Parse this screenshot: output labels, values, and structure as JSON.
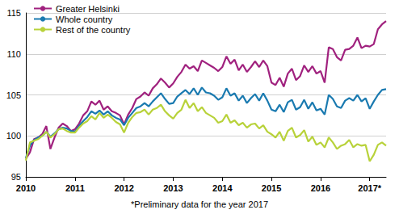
{
  "chart_data": {
    "type": "line",
    "annotations": [
      "*Preliminary data for the year 2017"
    ],
    "categories": [
      "2010",
      null,
      null,
      null,
      null,
      null,
      null,
      null,
      null,
      null,
      null,
      null,
      "2011",
      null,
      null,
      null,
      null,
      null,
      null,
      null,
      null,
      null,
      null,
      null,
      "2012",
      null,
      null,
      null,
      null,
      null,
      null,
      null,
      null,
      null,
      null,
      null,
      "2013",
      null,
      null,
      null,
      null,
      null,
      null,
      null,
      null,
      null,
      null,
      null,
      "2014",
      null,
      null,
      null,
      null,
      null,
      null,
      null,
      null,
      null,
      null,
      null,
      "2015",
      null,
      null,
      null,
      null,
      null,
      null,
      null,
      null,
      null,
      null,
      null,
      "2016",
      null,
      null,
      null,
      null,
      null,
      null,
      null,
      null,
      null,
      null,
      null,
      "2017*",
      null,
      null,
      null,
      null
    ],
    "series": [
      {
        "name": "Greater Helsinki",
        "color": "#a0217e",
        "values": [
          97.2,
          98.0,
          99.6,
          99.8,
          100.2,
          101.2,
          98.4,
          99.8,
          101.0,
          101.5,
          101.2,
          100.6,
          100.8,
          101.5,
          102.5,
          103.0,
          104.2,
          103.8,
          104.3,
          103.2,
          103.6,
          103.0,
          102.8,
          102.5,
          101.4,
          102.6,
          103.4,
          104.5,
          104.8,
          105.3,
          104.9,
          105.8,
          106.3,
          107.0,
          106.5,
          105.9,
          106.4,
          107.2,
          107.8,
          108.7,
          108.2,
          108.5,
          107.9,
          109.2,
          108.9,
          108.6,
          108.3,
          107.9,
          108.4,
          109.7,
          108.8,
          109.3,
          108.0,
          108.7,
          107.8,
          108.4,
          109.1,
          108.4,
          109.2,
          108.5,
          106.5,
          106.2,
          107.1,
          106.0,
          107.6,
          108.2,
          106.8,
          107.3,
          108.6,
          107.8,
          108.5,
          107.6,
          107.9,
          106.5,
          110.8,
          110.6,
          109.6,
          109.2,
          110.5,
          110.6,
          111.0,
          112.0,
          110.7,
          111.0,
          110.9,
          111.2,
          113.0,
          113.6,
          114.0
        ]
      },
      {
        "name": "Whole country",
        "color": "#1a7ab0",
        "values": [
          97.3,
          98.8,
          99.5,
          99.8,
          100.0,
          100.5,
          99.9,
          100.3,
          100.8,
          101.0,
          100.9,
          100.6,
          100.5,
          101.2,
          101.8,
          102.3,
          103.0,
          102.7,
          103.1,
          102.6,
          103.0,
          102.5,
          102.2,
          102.0,
          101.3,
          102.2,
          102.8,
          103.4,
          103.6,
          104.0,
          103.6,
          104.2,
          104.7,
          105.2,
          104.5,
          103.9,
          104.0,
          104.8,
          105.2,
          105.6,
          105.1,
          105.8,
          105.0,
          105.9,
          105.3,
          105.2,
          104.9,
          104.4,
          104.7,
          105.8,
          104.9,
          105.2,
          104.3,
          104.9,
          104.0,
          104.6,
          105.1,
          104.3,
          105.2,
          104.3,
          103.2,
          103.0,
          103.8,
          102.9,
          104.1,
          104.4,
          103.2,
          103.5,
          104.4,
          103.3,
          104.1,
          103.1,
          103.3,
          102.6,
          105.0,
          104.5,
          103.6,
          103.4,
          104.3,
          104.6,
          104.3,
          105.0,
          104.2,
          104.6,
          103.3,
          104.2,
          105.0,
          105.6,
          105.7
        ]
      },
      {
        "name": "Rest of the country",
        "color": "#b8d23a",
        "values": [
          97.0,
          99.2,
          99.4,
          99.6,
          100.0,
          100.5,
          99.8,
          100.2,
          100.8,
          100.9,
          100.6,
          100.4,
          100.4,
          101.0,
          101.5,
          101.8,
          102.4,
          102.0,
          102.8,
          102.2,
          102.6,
          102.2,
          101.7,
          101.4,
          100.4,
          101.6,
          102.3,
          102.8,
          102.9,
          103.2,
          102.6,
          103.2,
          103.4,
          103.8,
          103.0,
          102.5,
          102.1,
          102.8,
          103.2,
          104.4,
          103.4,
          104.0,
          103.0,
          103.5,
          102.8,
          102.5,
          102.2,
          101.6,
          101.8,
          102.6,
          101.6,
          101.9,
          101.3,
          101.6,
          101.0,
          101.4,
          101.5,
          100.9,
          101.3,
          100.5,
          100.2,
          99.8,
          100.5,
          99.4,
          100.6,
          101.0,
          99.8,
          100.1,
          100.7,
          99.3,
          99.9,
          98.9,
          99.2,
          98.6,
          99.8,
          99.2,
          98.4,
          98.8,
          99.0,
          99.5,
          98.6,
          99.0,
          98.8,
          98.9,
          96.9,
          97.7,
          98.9,
          99.2,
          98.8
        ]
      }
    ],
    "ylim": [
      95,
      115
    ],
    "yticks": [
      95,
      100,
      105,
      110,
      115
    ],
    "grid": true,
    "legend": "top-left"
  }
}
